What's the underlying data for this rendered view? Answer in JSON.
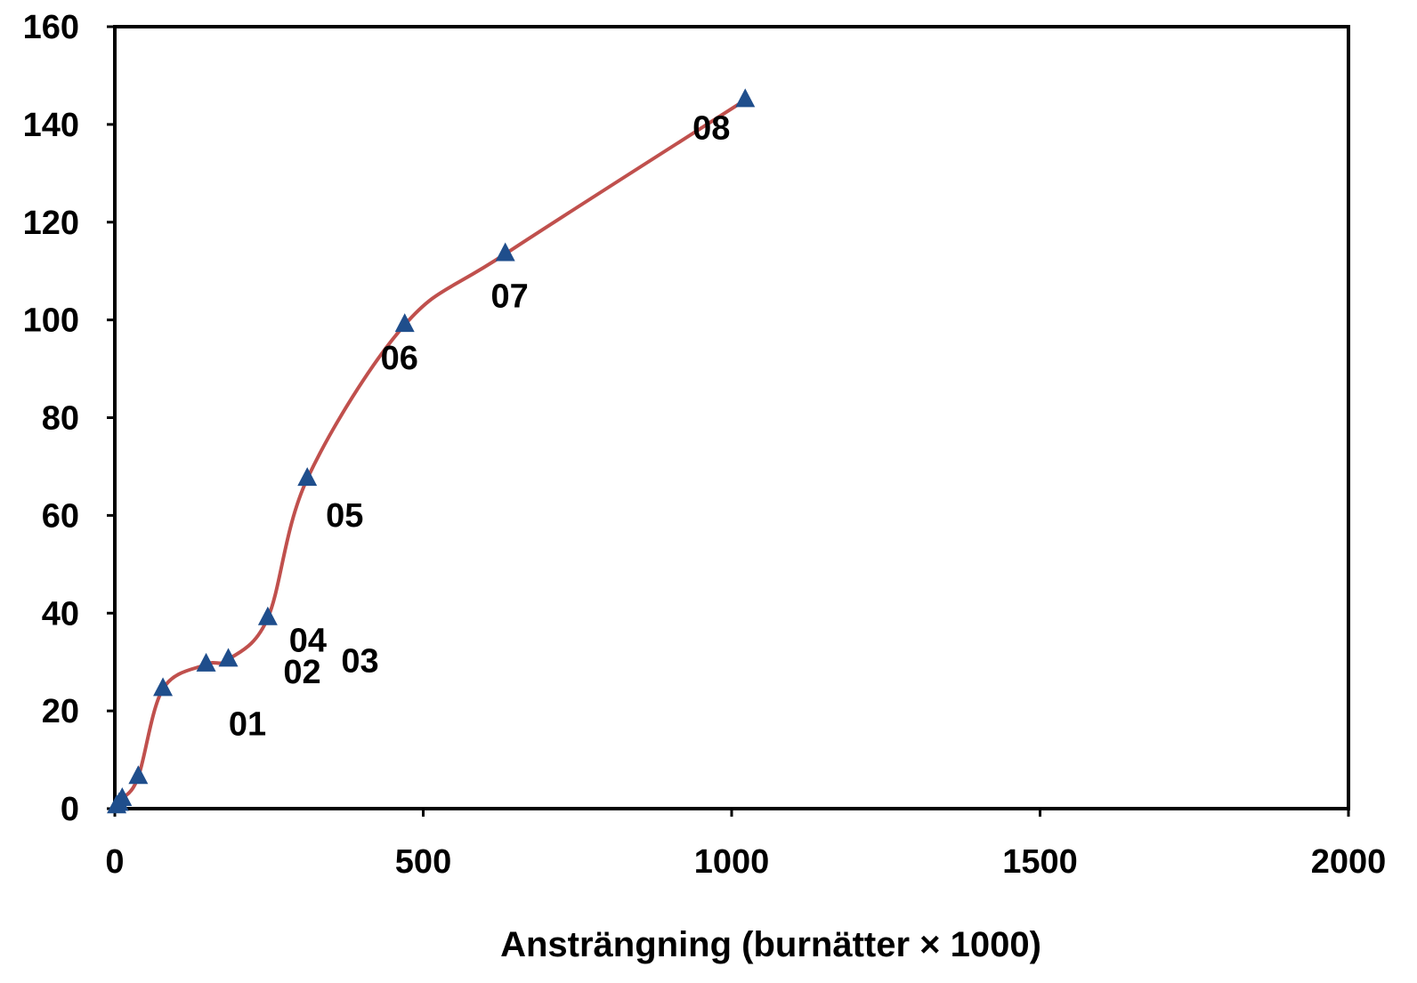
{
  "chart_data": {
    "type": "scatter",
    "xlabel": "Ansträngning (burnätter × 1000)",
    "ylabel": "",
    "xlim": [
      0,
      2000
    ],
    "ylim": [
      0,
      160
    ],
    "x_ticks": [
      "0",
      "500",
      "1000",
      "1500",
      "2000"
    ],
    "y_ticks": [
      "0",
      "20",
      "40",
      "60",
      "80",
      "100",
      "120",
      "140",
      "160"
    ],
    "grid": false,
    "legend": "none",
    "series": [
      {
        "marker": "triangle",
        "line": "smooth",
        "marker_color": "#1f4e8c",
        "line_color": "#c0504d",
        "points": [
          {
            "x": 3,
            "y": 0.5,
            "label": ""
          },
          {
            "x": 7,
            "y": 1,
            "label": ""
          },
          {
            "x": 12,
            "y": 2,
            "label": ""
          },
          {
            "x": 38,
            "y": 6.5,
            "label": ""
          },
          {
            "x": 78,
            "y": 24.5,
            "label": "01"
          },
          {
            "x": 148,
            "y": 29.5,
            "label": "02"
          },
          {
            "x": 184,
            "y": 30.5,
            "label": "03"
          },
          {
            "x": 248,
            "y": 39,
            "label": "04"
          },
          {
            "x": 312,
            "y": 67.5,
            "label": "05"
          },
          {
            "x": 470,
            "y": 99,
            "label": "06"
          },
          {
            "x": 633,
            "y": 113.5,
            "label": "07"
          },
          {
            "x": 1022,
            "y": 145,
            "label": "08"
          }
        ]
      }
    ]
  }
}
